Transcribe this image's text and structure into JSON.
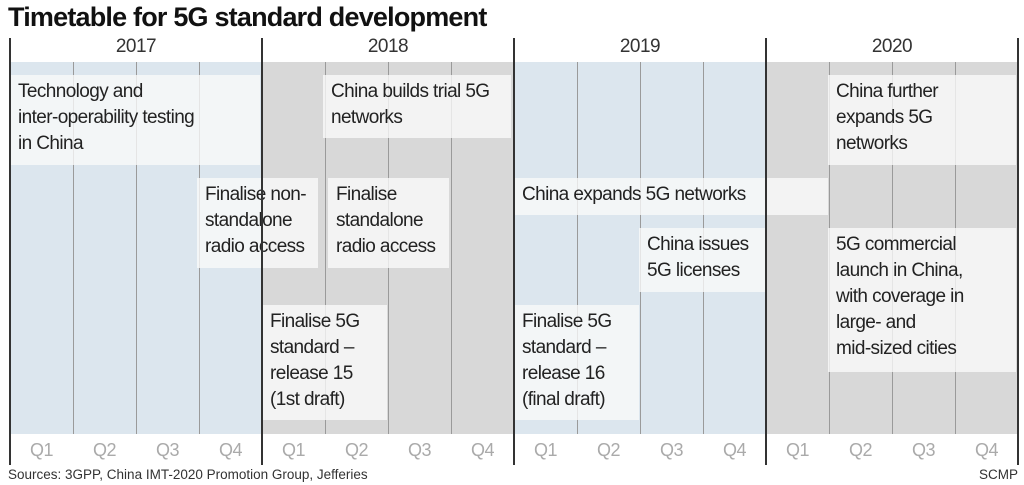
{
  "title": "Timetable for 5G standard development",
  "years": [
    "2017",
    "2018",
    "2019",
    "2020"
  ],
  "quarters": [
    "Q1",
    "Q2",
    "Q3",
    "Q4"
  ],
  "colors": {
    "blue_band": "#dce6ee",
    "gray_band": "#d8d8d8",
    "box": "#f5f5f5",
    "year_line": "#333333"
  },
  "events": [
    {
      "text": "Technology and\ninter-operability testing\nin China",
      "start": "2017 Q1",
      "end": "2017 Q4"
    },
    {
      "text": "China builds trial 5G\nnetworks",
      "start": "2018 Q2",
      "end": "2018 Q4"
    },
    {
      "text": "Finalise non-\nstandalone\nradio access",
      "start": "2017 Q4",
      "end": "2018 Q1"
    },
    {
      "text": "Finalise\nstandalone\nradio access",
      "start": "2018 Q2",
      "end": "2018 Q3"
    },
    {
      "text": "China expands 5G networks",
      "start": "2019 Q1",
      "end": "2020 Q1"
    },
    {
      "text": "China issues\n5G licenses",
      "start": "2019 Q3",
      "end": "2019 Q4"
    },
    {
      "text": "Finalise 5G\nstandard –\nrelease 15\n(1st draft)",
      "start": "2018 Q1",
      "end": "2018 Q2"
    },
    {
      "text": "Finalise 5G\nstandard –\nrelease 16\n(final draft)",
      "start": "2019 Q1",
      "end": "2019 Q2"
    },
    {
      "text": "China further\nexpands 5G\nnetworks",
      "start": "2020 Q2",
      "end": "2020 Q4"
    },
    {
      "text": "5G commercial\nlaunch in China,\nwith coverage in\nlarge- and\nmid-sized cities",
      "start": "2020 Q2",
      "end": "2020 Q4"
    }
  ],
  "sources": "Sources: 3GPP, China IMT-2020 Promotion Group, Jefferies",
  "credit": "SCMP"
}
